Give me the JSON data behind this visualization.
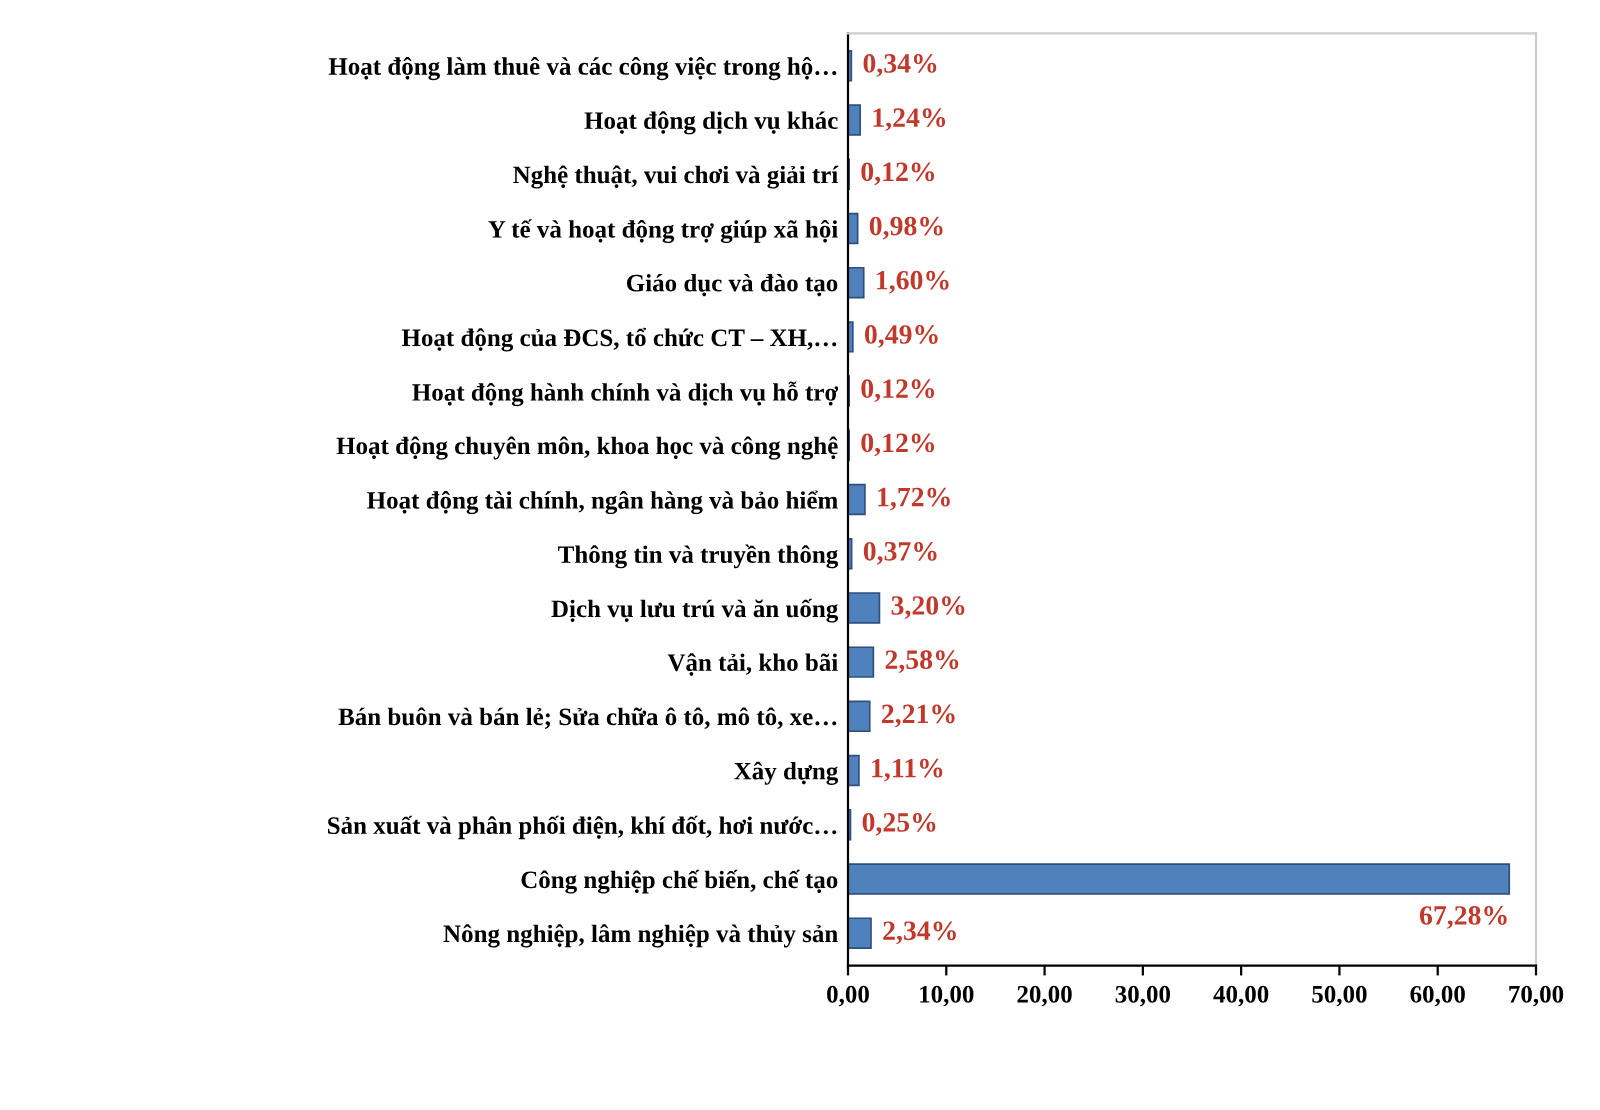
{
  "chart_data": {
    "type": "bar",
    "orientation": "horizontal",
    "categories": [
      "Hoạt động làm thuê và các công việc trong hộ…",
      "Hoạt động dịch vụ khác",
      "Nghệ thuật, vui chơi và giải trí",
      "Y tế và hoạt động trợ giúp xã hội",
      "Giáo dục và đào tạo",
      "Hoạt động của ĐCS, tổ chức CT – XH,…",
      "Hoạt động hành chính và dịch vụ hỗ trợ",
      "Hoạt động chuyên môn, khoa học và công nghệ",
      "Hoạt động tài chính, ngân hàng và bảo hiểm",
      "Thông tin và truyền thông",
      "Dịch vụ lưu trú và ăn uống",
      "Vận tải, kho bãi",
      "Bán buôn và bán lẻ; Sửa chữa ô tô, mô tô, xe…",
      "Xây dựng",
      "Sản xuất và phân phối điện, khí đốt, hơi nước…",
      "Công nghiệp chế biến, chế tạo",
      "Nông nghiệp, lâm nghiệp và thủy sản"
    ],
    "values": [
      0.34,
      1.24,
      0.12,
      0.98,
      1.6,
      0.49,
      0.12,
      0.12,
      1.72,
      0.37,
      3.2,
      2.58,
      2.21,
      1.11,
      0.25,
      67.28,
      2.34
    ],
    "value_labels": [
      "0,34%",
      "1,24%",
      "0,12%",
      "0,98%",
      "1,60%",
      "0,49%",
      "0,12%",
      "0,12%",
      "1,72%",
      "0,37%",
      "3,20%",
      "2,58%",
      "2,21%",
      "1,11%",
      "0,25%",
      "67,28%",
      "2,34%"
    ],
    "color": "#4f81bd",
    "xlim": [
      0,
      70
    ],
    "xticks": [
      {
        "value": 0,
        "label": "0,00"
      },
      {
        "value": 10,
        "label": "10,00"
      },
      {
        "value": 20,
        "label": "20,00"
      },
      {
        "value": 30,
        "label": "30,00"
      },
      {
        "value": 40,
        "label": "40,00"
      },
      {
        "value": 50,
        "label": "50,00"
      },
      {
        "value": 60,
        "label": "60,00"
      },
      {
        "value": 70,
        "label": "70,00"
      }
    ],
    "grid": false
  }
}
